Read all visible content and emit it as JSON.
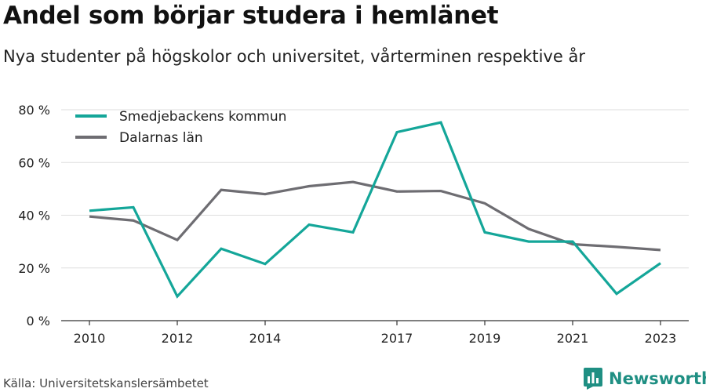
{
  "title": "Andel som börjar studera i hemlänet",
  "subtitle": "Nya studenter på högskolor och universitet, vårterminen respektive år",
  "source": "Källa: Universitetskanslersämbetet",
  "brand": "Newsworthy",
  "chart_data": {
    "type": "line",
    "x": [
      2010,
      2011,
      2012,
      2013,
      2014,
      2015,
      2016,
      2017,
      2018,
      2019,
      2020,
      2021,
      2022,
      2023
    ],
    "x_tick_labels": [
      "2010",
      "2012",
      "2014",
      "2017",
      "2019",
      "2021",
      "2023"
    ],
    "y_ticks": [
      "0 %",
      "20 %",
      "40 %",
      "60 %",
      "80 %"
    ],
    "ylim": [
      0,
      80
    ],
    "grid": true,
    "legend_position": "top-left",
    "series": [
      {
        "name": "Smedjebackens kommun",
        "color": "#14a699",
        "values": [
          41.7,
          43,
          9.2,
          27.3,
          21.5,
          36.4,
          33.5,
          71.5,
          75.2,
          33.5,
          30,
          30,
          10.2,
          21.8
        ]
      },
      {
        "name": "Dalarnas län",
        "color": "#6e6d72",
        "values": [
          39.5,
          38,
          30.6,
          49.6,
          48,
          51,
          52.6,
          49,
          49.2,
          44.5,
          34.8,
          29,
          28,
          26.8
        ]
      }
    ]
  }
}
